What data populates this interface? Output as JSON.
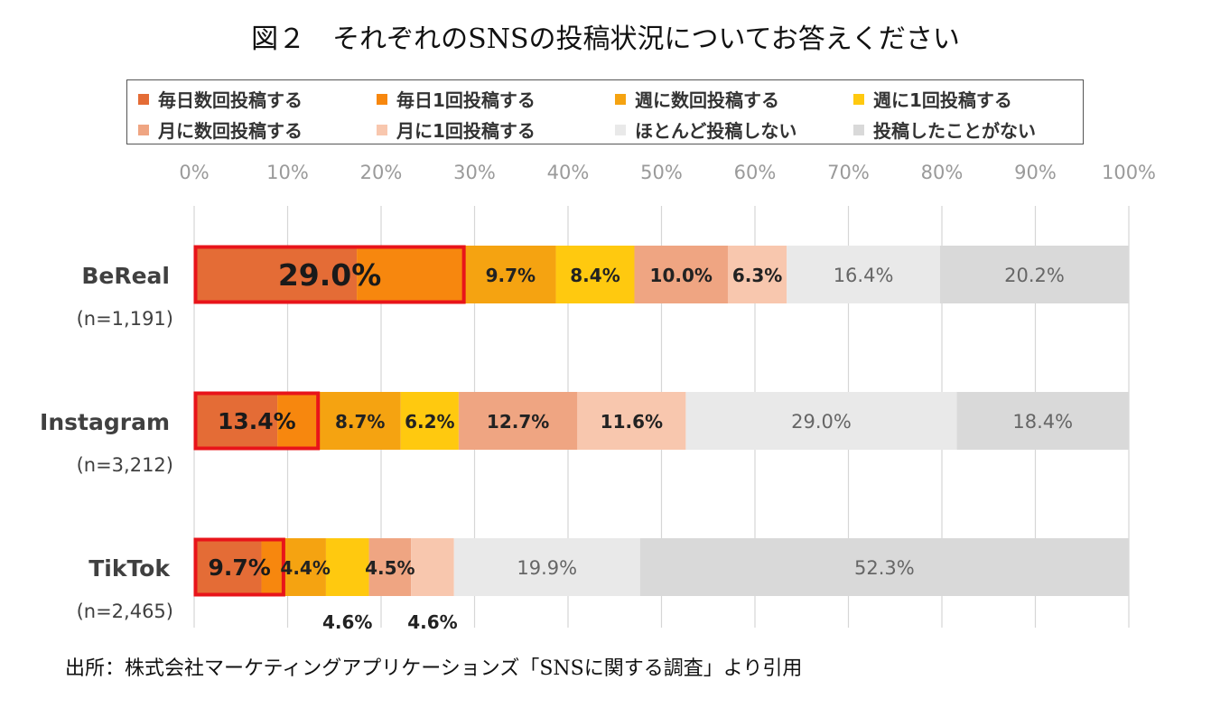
{
  "chart_data": {
    "type": "bar",
    "orientation": "horizontal",
    "stacked": true,
    "percent": true,
    "title": "図２　それぞれのSNSの投稿状況についてお答えください",
    "xlim": [
      0,
      100
    ],
    "x_ticks": [
      "0%",
      "10%",
      "20%",
      "30%",
      "40%",
      "50%",
      "60%",
      "70%",
      "80%",
      "90%",
      "100%"
    ],
    "grid": "vertical",
    "legend_position": "top",
    "categories": [
      {
        "name": "BeReal",
        "n": "(n=1,191)"
      },
      {
        "name": "Instagram",
        "n": "(n=3,212)"
      },
      {
        "name": "TikTok",
        "n": "(n=2,465)"
      }
    ],
    "series": [
      {
        "name": "毎日数回投稿する",
        "color": "#E46C36",
        "values": [
          17.4,
          8.9,
          7.2
        ]
      },
      {
        "name": "毎日1回投稿する",
        "color": "#F7870E",
        "values": [
          11.6,
          4.5,
          2.5
        ]
      },
      {
        "name": "週に数回投稿する",
        "color": "#F5A311",
        "values": [
          9.7,
          8.7,
          4.4
        ]
      },
      {
        "name": "週に1回投稿する",
        "color": "#FFC90F",
        "values": [
          8.4,
          6.2,
          4.6
        ]
      },
      {
        "name": "月に数回投稿する",
        "color": "#EFA582",
        "values": [
          10.0,
          12.7,
          4.5
        ]
      },
      {
        "name": "月に1回投稿する",
        "color": "#F8C7AE",
        "values": [
          6.3,
          11.6,
          4.6
        ]
      },
      {
        "name": "ほとんど投稿しない",
        "color": "#E9E9E9",
        "values": [
          16.4,
          29.0,
          19.9
        ]
      },
      {
        "name": "投稿したことがない",
        "color": "#D9D9D9",
        "values": [
          20.2,
          18.4,
          52.3
        ]
      }
    ],
    "highlight_labels": [
      "29.0%",
      "13.4%",
      "9.7%"
    ],
    "data_labels": [
      [
        null,
        null,
        "9.7%",
        "8.4%",
        "10.0%",
        "6.3%",
        "16.4%",
        "20.2%"
      ],
      [
        null,
        null,
        "8.7%",
        "6.2%",
        "12.7%",
        "11.6%",
        "29.0%",
        "18.4%"
      ],
      [
        null,
        null,
        "4.4%",
        "4.6%",
        "4.5%",
        "4.6%",
        "19.9%",
        "52.3%"
      ]
    ]
  },
  "source": "出所：株式会社マーケティングアプリケーションズ「SNSに関する調査」より引用"
}
